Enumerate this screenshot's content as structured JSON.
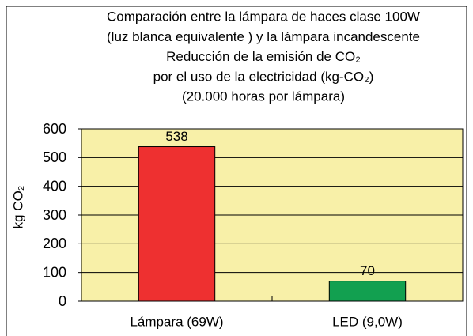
{
  "chart_data": {
    "type": "bar",
    "title": [
      "Comparación entre la lámpara de haces clase 100W",
      "(luz blanca equivalente ) y la lámpara incandescente",
      "Reducción de la emisión de CO₂",
      "por el uso de la electricidad (kg-CO₂)",
      "(20.000 horas por lámpara)"
    ],
    "y_label": "kg CO₂",
    "categories": [
      "Lámpara (69W)",
      "LED (9,0W)"
    ],
    "values": [
      538,
      70
    ],
    "colors": [
      "#ee3030",
      "#12a050"
    ],
    "ylim": [
      0,
      600
    ],
    "yticks": [
      0,
      100,
      200,
      300,
      400,
      500,
      600
    ],
    "grid": true
  }
}
